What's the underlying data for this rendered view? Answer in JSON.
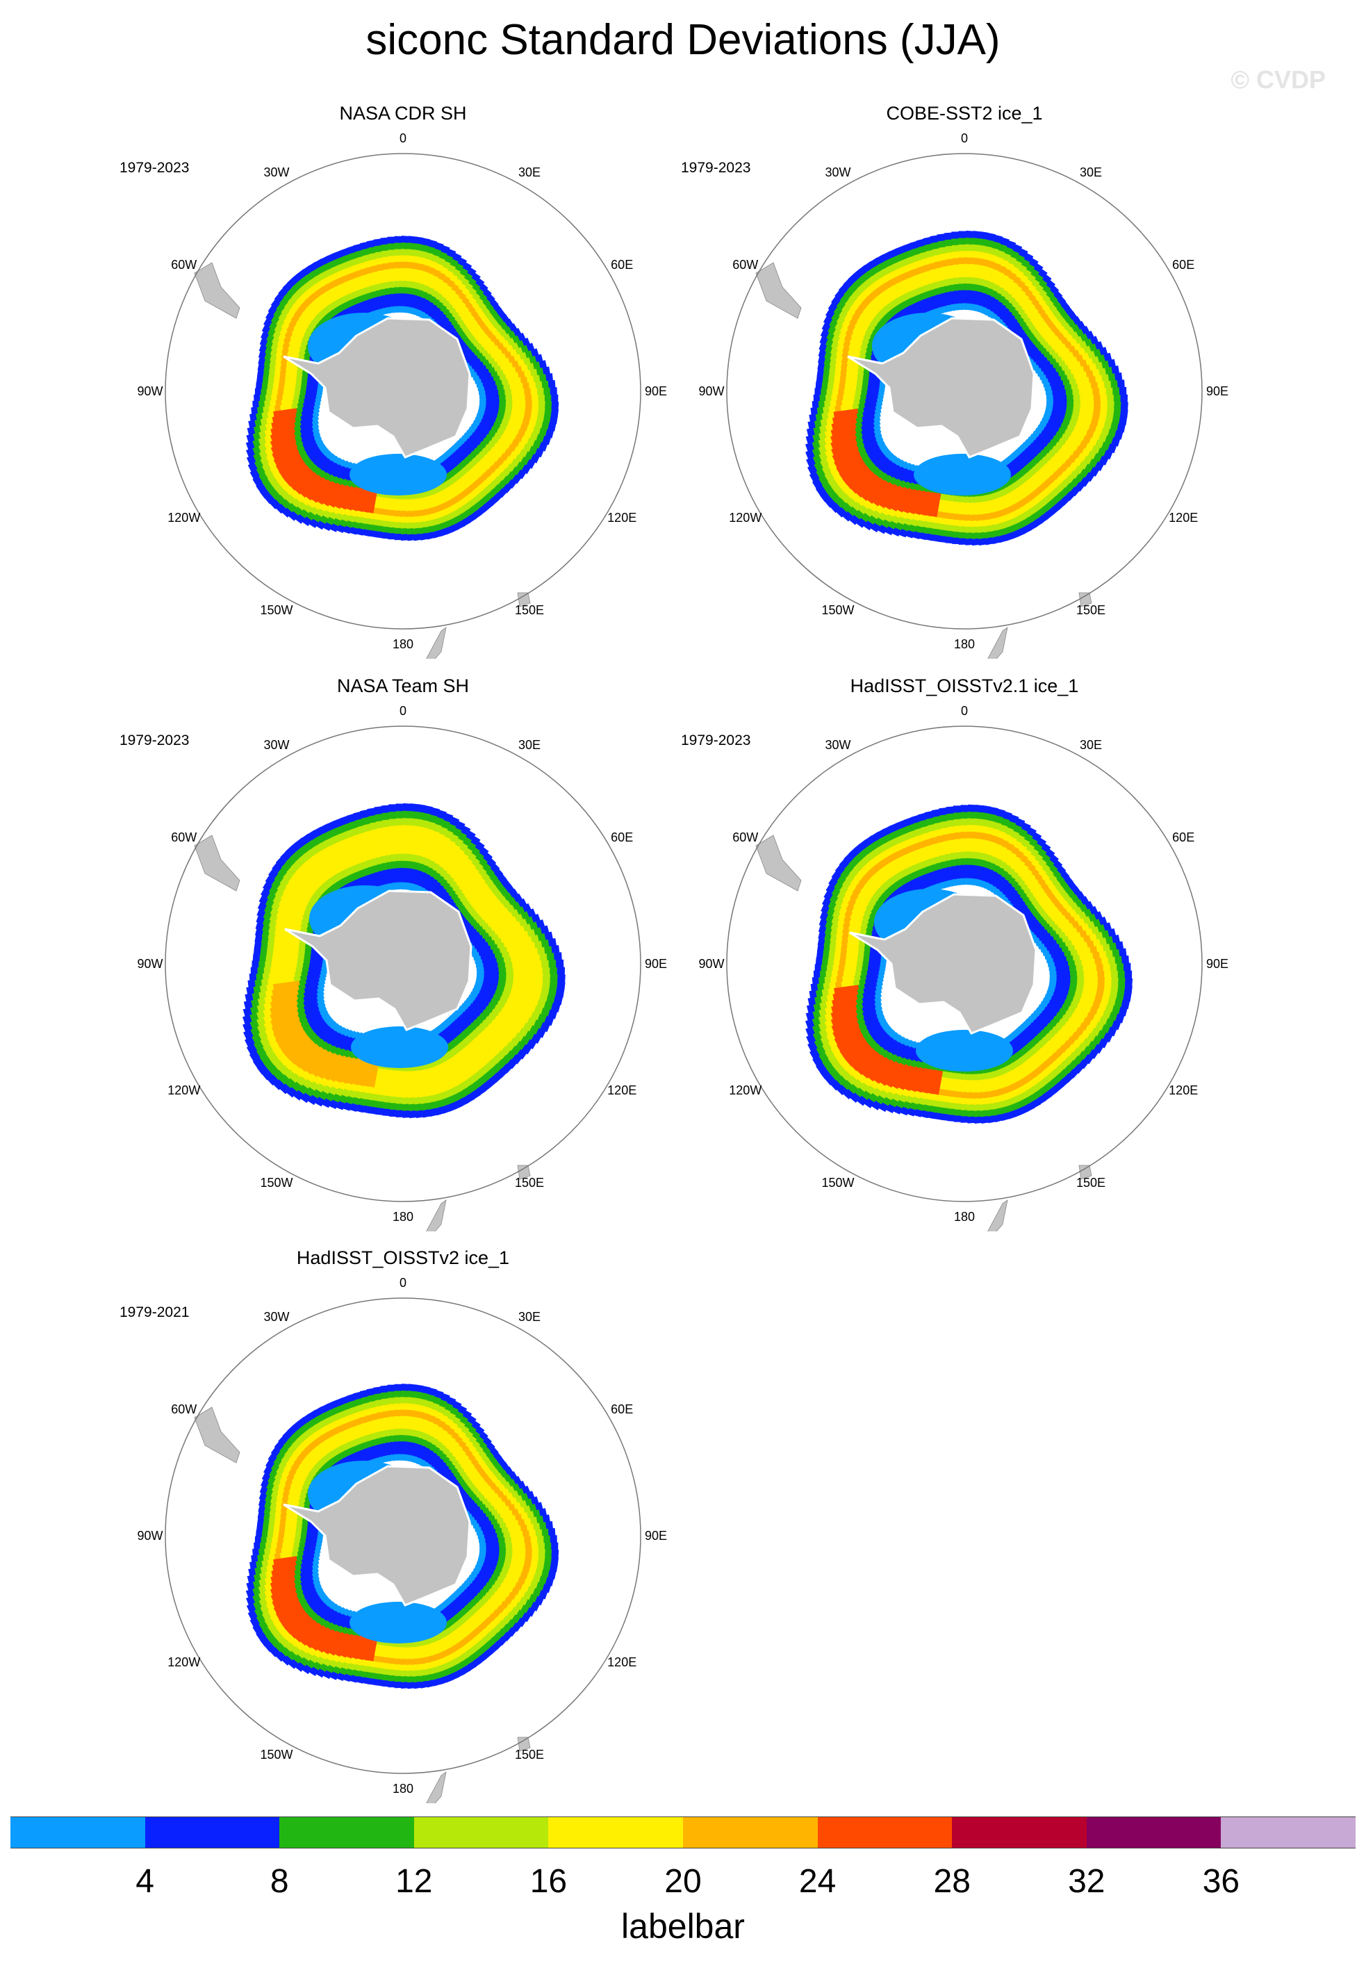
{
  "title": "siconc Standard Deviations (JJA)",
  "watermark": "© CVDP",
  "panels": [
    {
      "title": "NASA CDR SH",
      "period": "1979-2023"
    },
    {
      "title": "COBE-SST2 ice_1",
      "period": "1979-2023"
    },
    {
      "title": "NASA Team SH",
      "period": "1979-2023"
    },
    {
      "title": "HadISST_OISSTv2.1 ice_1",
      "period": "1979-2023"
    },
    {
      "title": "HadISST_OISSTv2 ice_1",
      "period": "1979-2021"
    }
  ],
  "longitude_labels": [
    "0",
    "30E",
    "60E",
    "90E",
    "120E",
    "150E",
    "180",
    "150W",
    "120W",
    "90W",
    "60W",
    "30W"
  ],
  "colorbar": {
    "label": "labelbar",
    "ticks": [
      "4",
      "8",
      "12",
      "16",
      "20",
      "24",
      "28",
      "32",
      "36"
    ],
    "colors": [
      "#0a9cff",
      "#0a21ff",
      "#22b612",
      "#b6e80a",
      "#fff000",
      "#ffb400",
      "#ff4a00",
      "#b8002e",
      "#86005e",
      "#c8a8d4"
    ]
  },
  "chart_data": {
    "type": "heatmap",
    "title": "siconc Standard Deviations (JJA)",
    "projection": "south polar stereographic",
    "contour_levels": [
      4,
      8,
      12,
      16,
      20,
      24,
      28,
      32,
      36
    ],
    "colorbar_label": "labelbar",
    "panels": [
      {
        "dataset": "NASA CDR SH",
        "period": "1979-2023"
      },
      {
        "dataset": "COBE-SST2 ice_1",
        "period": "1979-2023"
      },
      {
        "dataset": "NASA Team SH",
        "period": "1979-2023"
      },
      {
        "dataset": "HadISST_OISSTv2.1 ice_1",
        "period": "1979-2023"
      },
      {
        "dataset": "HadISST_OISSTv2 ice_1",
        "period": "1979-2021"
      }
    ]
  }
}
